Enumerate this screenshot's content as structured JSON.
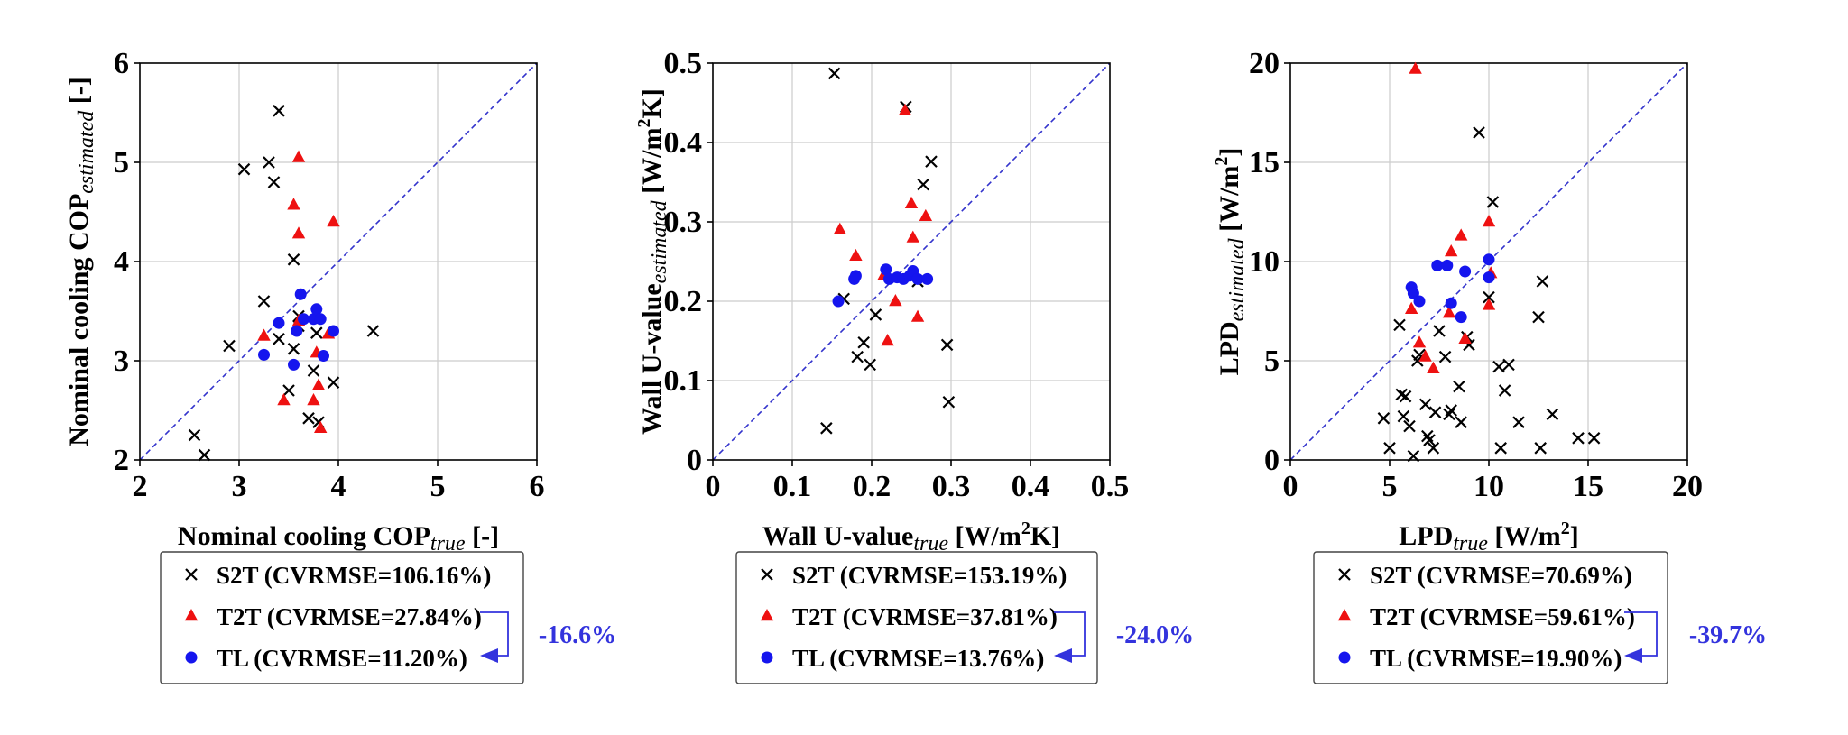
{
  "colors": {
    "S2T": "#000000",
    "T2T": "#ee1111",
    "TL": "#1515ee",
    "diagonal": "#3333cc",
    "arrow": "#3333dd",
    "grid": "#cccccc"
  },
  "chart_data": [
    {
      "type": "scatter",
      "xlabel": {
        "main": "Nominal cooling COP",
        "sub": "true",
        "suffix": " [-]"
      },
      "ylabel": {
        "main": "Nominal cooling COP",
        "sub": "estimated",
        "suffix": " [-]"
      },
      "xlim": [
        2,
        6
      ],
      "ylim": [
        2,
        6
      ],
      "xticks": [
        2,
        3,
        4,
        5,
        6
      ],
      "yticks": [
        2,
        3,
        4,
        5,
        6
      ],
      "xtick_labels": [
        "2",
        "3",
        "4",
        "5",
        "6"
      ],
      "ytick_labels": [
        "2",
        "3",
        "4",
        "5",
        "6"
      ],
      "grid": true,
      "diagonal": true,
      "series": [
        {
          "name": "S2T",
          "marker": "x",
          "legend": "S2T (CVRMSE=106.16%)",
          "points": [
            [
              2.55,
              2.25
            ],
            [
              2.65,
              2.05
            ],
            [
              2.9,
              3.15
            ],
            [
              3.05,
              4.93
            ],
            [
              3.3,
              5.0
            ],
            [
              3.35,
              4.8
            ],
            [
              3.4,
              5.52
            ],
            [
              3.25,
              3.6
            ],
            [
              3.4,
              3.22
            ],
            [
              3.55,
              4.02
            ],
            [
              3.55,
              3.12
            ],
            [
              3.5,
              2.7
            ],
            [
              3.6,
              3.35
            ],
            [
              3.6,
              3.45
            ],
            [
              3.7,
              2.42
            ],
            [
              3.75,
              2.9
            ],
            [
              3.78,
              3.28
            ],
            [
              3.8,
              2.38
            ],
            [
              3.95,
              2.78
            ],
            [
              4.35,
              3.3
            ]
          ]
        },
        {
          "name": "T2T",
          "marker": "triangle",
          "legend": "T2T (CVRMSE=27.84%)",
          "points": [
            [
              3.25,
              3.25
            ],
            [
              3.45,
              2.6
            ],
            [
              3.55,
              4.57
            ],
            [
              3.6,
              5.05
            ],
            [
              3.6,
              4.28
            ],
            [
              3.6,
              3.4
            ],
            [
              3.75,
              2.6
            ],
            [
              3.78,
              3.08
            ],
            [
              3.8,
              2.75
            ],
            [
              3.82,
              2.32
            ],
            [
              3.9,
              3.27
            ],
            [
              3.95,
              4.4
            ]
          ]
        },
        {
          "name": "TL",
          "marker": "circle",
          "legend": "TL (CVRMSE=11.20%)",
          "points": [
            [
              3.25,
              3.06
            ],
            [
              3.4,
              3.38
            ],
            [
              3.55,
              2.96
            ],
            [
              3.58,
              3.3
            ],
            [
              3.62,
              3.67
            ],
            [
              3.65,
              3.42
            ],
            [
              3.75,
              3.42
            ],
            [
              3.78,
              3.52
            ],
            [
              3.82,
              3.42
            ],
            [
              3.85,
              3.05
            ],
            [
              3.95,
              3.3
            ]
          ]
        }
      ],
      "annotation": "-16.6%"
    },
    {
      "type": "scatter",
      "xlabel": {
        "main": "Wall U-value",
        "sub": "true",
        "suffix": " [W/m",
        "sup": "2",
        "suffix2": "K]"
      },
      "ylabel": {
        "main": "Wall U-value",
        "sub": "estimated",
        "suffix": " [W/m",
        "sup": "2",
        "suffix2": "K]"
      },
      "xlim": [
        0,
        0.5
      ],
      "ylim": [
        0,
        0.5
      ],
      "xticks": [
        0,
        0.1,
        0.2,
        0.3,
        0.4,
        0.5
      ],
      "yticks": [
        0,
        0.1,
        0.2,
        0.3,
        0.4,
        0.5
      ],
      "xtick_labels": [
        "0",
        "0.1",
        "0.2",
        "0.3",
        "0.4",
        "0.5"
      ],
      "ytick_labels": [
        "0",
        "0.1",
        "0.2",
        "0.3",
        "0.4",
        "0.5"
      ],
      "grid": true,
      "diagonal": true,
      "series": [
        {
          "name": "S2T",
          "marker": "x",
          "legend": "S2T (CVRMSE=153.19%)",
          "points": [
            [
              0.143,
              0.04
            ],
            [
              0.153,
              0.487
            ],
            [
              0.165,
              0.203
            ],
            [
              0.182,
              0.13
            ],
            [
              0.19,
              0.148
            ],
            [
              0.198,
              0.12
            ],
            [
              0.205,
              0.183
            ],
            [
              0.243,
              0.445
            ],
            [
              0.258,
              0.225
            ],
            [
              0.265,
              0.347
            ],
            [
              0.275,
              0.376
            ],
            [
              0.295,
              0.145
            ],
            [
              0.297,
              0.073
            ]
          ]
        },
        {
          "name": "T2T",
          "marker": "triangle",
          "legend": "T2T (CVRMSE=37.81%)",
          "points": [
            [
              0.16,
              0.29
            ],
            [
              0.18,
              0.257
            ],
            [
              0.215,
              0.232
            ],
            [
              0.22,
              0.15
            ],
            [
              0.23,
              0.2
            ],
            [
              0.242,
              0.44
            ],
            [
              0.25,
              0.323
            ],
            [
              0.252,
              0.28
            ],
            [
              0.258,
              0.18
            ],
            [
              0.268,
              0.307
            ]
          ]
        },
        {
          "name": "TL",
          "marker": "circle",
          "legend": "TL (CVRMSE=13.76%)",
          "points": [
            [
              0.158,
              0.2
            ],
            [
              0.178,
              0.228
            ],
            [
              0.18,
              0.232
            ],
            [
              0.218,
              0.24
            ],
            [
              0.222,
              0.228
            ],
            [
              0.232,
              0.23
            ],
            [
              0.24,
              0.228
            ],
            [
              0.248,
              0.232
            ],
            [
              0.252,
              0.238
            ],
            [
              0.258,
              0.228
            ],
            [
              0.27,
              0.228
            ]
          ]
        }
      ],
      "annotation": "-24.0%"
    },
    {
      "type": "scatter",
      "xlabel": {
        "main": "LPD",
        "sub": "true",
        "suffix": " [W/m",
        "sup": "2",
        "suffix2": "]"
      },
      "ylabel": {
        "main": "LPD",
        "sub": "estimated",
        "suffix": " [W/m",
        "sup": "2",
        "suffix2": "]"
      },
      "xlim": [
        0,
        20
      ],
      "ylim": [
        0,
        20
      ],
      "xticks": [
        0,
        5,
        10,
        15,
        20
      ],
      "yticks": [
        0,
        5,
        10,
        15,
        20
      ],
      "xtick_labels": [
        "0",
        "5",
        "10",
        "15",
        "20"
      ],
      "ytick_labels": [
        "0",
        "5",
        "10",
        "15",
        "20"
      ],
      "grid": true,
      "diagonal": true,
      "series": [
        {
          "name": "S2T",
          "marker": "x",
          "legend": "S2T (CVRMSE=70.69%)",
          "points": [
            [
              4.7,
              2.1
            ],
            [
              5.0,
              0.6
            ],
            [
              5.5,
              6.8
            ],
            [
              5.6,
              3.3
            ],
            [
              5.8,
              3.2
            ],
            [
              5.7,
              2.2
            ],
            [
              6.0,
              1.7
            ],
            [
              6.2,
              0.2
            ],
            [
              6.4,
              5.0
            ],
            [
              6.5,
              5.3
            ],
            [
              6.8,
              2.8
            ],
            [
              6.9,
              1.2
            ],
            [
              7.0,
              1.0
            ],
            [
              7.2,
              0.6
            ],
            [
              7.3,
              2.4
            ],
            [
              7.5,
              6.5
            ],
            [
              7.8,
              5.2
            ],
            [
              8.0,
              2.3
            ],
            [
              8.1,
              2.5
            ],
            [
              8.5,
              3.7
            ],
            [
              8.6,
              1.9
            ],
            [
              8.9,
              6.2
            ],
            [
              9.0,
              5.8
            ],
            [
              9.5,
              16.5
            ],
            [
              10.0,
              8.2
            ],
            [
              10.2,
              13.0
            ],
            [
              10.5,
              4.7
            ],
            [
              10.6,
              0.6
            ],
            [
              10.8,
              3.5
            ],
            [
              11.0,
              4.8
            ],
            [
              11.5,
              1.9
            ],
            [
              12.5,
              7.2
            ],
            [
              12.6,
              0.6
            ],
            [
              12.7,
              9.0
            ],
            [
              13.2,
              2.3
            ],
            [
              14.5,
              1.1
            ],
            [
              15.3,
              1.1
            ]
          ]
        },
        {
          "name": "T2T",
          "marker": "triangle",
          "legend": "T2T (CVRMSE=59.61%)",
          "points": [
            [
              6.1,
              7.6
            ],
            [
              6.3,
              19.7
            ],
            [
              6.5,
              5.9
            ],
            [
              6.8,
              5.2
            ],
            [
              7.2,
              4.6
            ],
            [
              8.0,
              7.4
            ],
            [
              8.1,
              10.5
            ],
            [
              8.6,
              11.3
            ],
            [
              8.8,
              6.1
            ],
            [
              10.0,
              12.0
            ],
            [
              10.0,
              7.8
            ],
            [
              10.1,
              9.4
            ]
          ]
        },
        {
          "name": "TL",
          "marker": "circle",
          "legend": "TL (CVRMSE=19.90%)",
          "points": [
            [
              6.1,
              8.7
            ],
            [
              6.2,
              8.4
            ],
            [
              6.5,
              8.0
            ],
            [
              7.4,
              9.8
            ],
            [
              7.9,
              9.8
            ],
            [
              8.1,
              7.9
            ],
            [
              8.6,
              7.2
            ],
            [
              8.8,
              9.5
            ],
            [
              10.0,
              10.1
            ],
            [
              10.0,
              9.2
            ]
          ]
        }
      ],
      "annotation": "-39.7%"
    }
  ]
}
